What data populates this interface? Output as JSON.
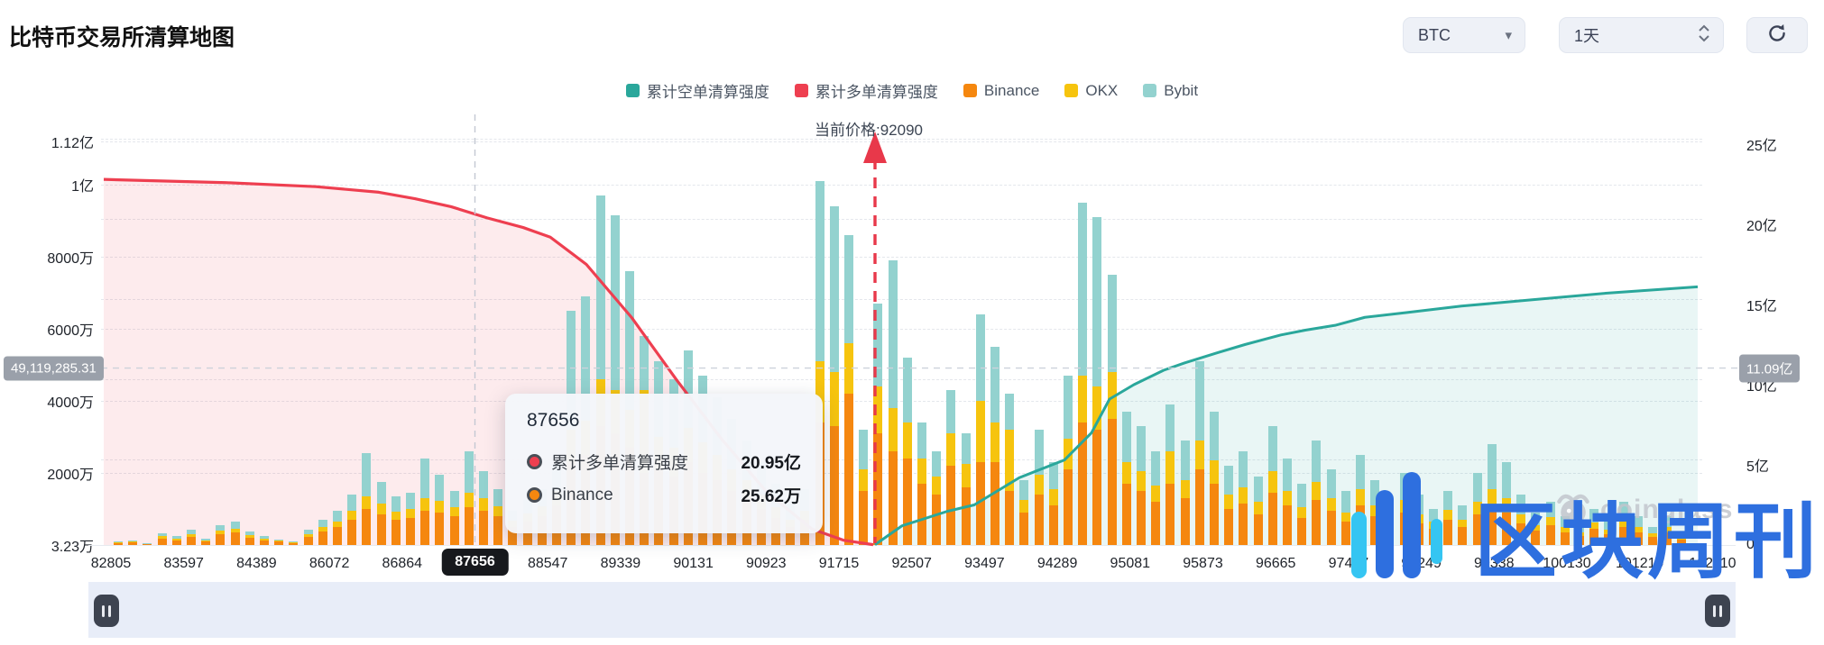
{
  "page": {
    "title": "比特币交易所清算地图"
  },
  "controls": {
    "symbol": "BTC",
    "interval": "1天",
    "refresh_icon": "refresh-icon",
    "button_bg": "#eef1f7"
  },
  "legend": [
    {
      "label": "累计空单清算强度",
      "color": "#2aa79b"
    },
    {
      "label": "累计多单清算强度",
      "color": "#ee3f50"
    },
    {
      "label": "Binance",
      "color": "#f5870f"
    },
    {
      "label": "OKX",
      "color": "#f6c40e"
    },
    {
      "label": "Bybit",
      "color": "#93d2cf"
    }
  ],
  "current_price": {
    "label": "当前价格:92090",
    "price": "92090"
  },
  "axis_pointer": {
    "left_badge": "49,119,285.31",
    "left_value_wan": 4911.93,
    "right_badge": "11.09亿"
  },
  "tooltip": {
    "title": "87656",
    "rows": [
      {
        "name": "累计多单清算强度",
        "value": "20.95亿",
        "color": "#ee3f50"
      },
      {
        "name": "Binance",
        "value": "25.62万",
        "color": "#f5870f"
      }
    ]
  },
  "watermark": {
    "brand": "coinglass",
    "text": "区块周刊",
    "text_color": "#2e6fdf",
    "logo_cyan": "#35c5f2"
  },
  "chart_data": {
    "type": "composite",
    "subtype": "stacked-bar + 2 cumulative lines",
    "legend_position": "top-center",
    "grid": "dashed horizontal",
    "bar_unit": "万",
    "line_unit": "亿",
    "left_axis": {
      "range_wan": [
        0,
        11200
      ],
      "ticks": [
        {
          "v": 11200,
          "label": "1.12亿"
        },
        {
          "v": 10000,
          "label": "1亿"
        },
        {
          "v": 8000,
          "label": "8000万"
        },
        {
          "v": 6000,
          "label": "6000万"
        },
        {
          "v": 4000,
          "label": "4000万"
        },
        {
          "v": 2000,
          "label": "2000万"
        },
        {
          "v": 3.23,
          "label": "3.23万"
        }
      ]
    },
    "right_axis": {
      "range_yi": [
        0,
        25
      ],
      "ticks": [
        {
          "v": 25,
          "label": "25亿"
        },
        {
          "v": 20,
          "label": "20亿"
        },
        {
          "v": 15,
          "label": "15亿"
        },
        {
          "v": 10,
          "label": "10亿"
        },
        {
          "v": 5,
          "label": "5亿"
        },
        {
          "v": 0,
          "label": "0"
        }
      ]
    },
    "x_ticks": [
      "82805",
      "83597",
      "84389",
      "86072",
      "86864",
      "87656",
      "88547",
      "89339",
      "90131",
      "90923",
      "91715",
      "92507",
      "93497",
      "94289",
      "95081",
      "95873",
      "96665",
      "97457",
      "98249",
      "99338",
      "100130",
      "101219",
      "102110"
    ],
    "x_highlight_index": 5,
    "bar_series_names": [
      "Binance",
      "OKX",
      "Bybit"
    ],
    "bar_colors": [
      "#f5870f",
      "#f6c40e",
      "#93d2cf"
    ],
    "bars_wan": [
      [
        50,
        20,
        20
      ],
      [
        70,
        25,
        35
      ],
      [
        35,
        10,
        15
      ],
      [
        180,
        60,
        80
      ],
      [
        130,
        40,
        70
      ],
      [
        230,
        70,
        120
      ],
      [
        100,
        30,
        50
      ],
      [
        300,
        90,
        170
      ],
      [
        340,
        110,
        190
      ],
      [
        210,
        60,
        110
      ],
      [
        130,
        40,
        70
      ],
      [
        90,
        25,
        45
      ],
      [
        60,
        20,
        30
      ],
      [
        230,
        70,
        120
      ],
      [
        380,
        120,
        200
      ],
      [
        500,
        160,
        290
      ],
      [
        700,
        250,
        450
      ],
      [
        1000,
        350,
        1200
      ],
      [
        850,
        300,
        600
      ],
      [
        700,
        220,
        430
      ],
      [
        750,
        250,
        450
      ],
      [
        950,
        350,
        1100
      ],
      [
        900,
        320,
        730
      ],
      [
        800,
        250,
        450
      ],
      [
        1050,
        400,
        1150
      ],
      [
        950,
        350,
        750
      ],
      [
        800,
        280,
        470
      ],
      [
        500,
        170,
        280
      ],
      [
        650,
        220,
        380
      ],
      [
        800,
        280,
        470
      ],
      [
        1100,
        400,
        750
      ],
      [
        2300,
        900,
        3300
      ],
      [
        2500,
        950,
        3450
      ],
      [
        3300,
        1300,
        5100
      ],
      [
        3100,
        1200,
        4850
      ],
      [
        2700,
        1050,
        3850
      ],
      [
        2000,
        2300,
        1500
      ],
      [
        2100,
        900,
        2100
      ],
      [
        1900,
        800,
        1900
      ],
      [
        2300,
        950,
        2150
      ],
      [
        2000,
        850,
        1850
      ],
      [
        1800,
        700,
        1600
      ],
      [
        1500,
        600,
        1400
      ],
      [
        1300,
        500,
        1100
      ],
      [
        1000,
        400,
        900
      ],
      [
        750,
        300,
        650
      ],
      [
        500,
        200,
        450
      ],
      [
        700,
        250,
        600
      ],
      [
        3400,
        1700,
        5000
      ],
      [
        3300,
        1500,
        4600
      ],
      [
        4200,
        1400,
        3000
      ],
      [
        1500,
        600,
        1100
      ],
      [
        3100,
        1300,
        2300
      ],
      [
        2600,
        1200,
        4100
      ],
      [
        2400,
        1000,
        1800
      ],
      [
        1700,
        700,
        1000
      ],
      [
        1400,
        500,
        700
      ],
      [
        2200,
        900,
        1200
      ],
      [
        1600,
        650,
        850
      ],
      [
        2300,
        1700,
        2400
      ],
      [
        2300,
        1100,
        2100
      ],
      [
        1500,
        1700,
        1000
      ],
      [
        900,
        350,
        550
      ],
      [
        1400,
        550,
        1250
      ],
      [
        1100,
        450,
        750
      ],
      [
        2100,
        850,
        1750
      ],
      [
        3400,
        1300,
        4800
      ],
      [
        3200,
        1200,
        4700
      ],
      [
        3500,
        1300,
        2700
      ],
      [
        1700,
        600,
        1400
      ],
      [
        1500,
        550,
        1250
      ],
      [
        1200,
        450,
        950
      ],
      [
        1700,
        900,
        1300
      ],
      [
        1300,
        500,
        1100
      ],
      [
        2100,
        800,
        2200
      ],
      [
        1700,
        650,
        1350
      ],
      [
        1000,
        400,
        800
      ],
      [
        1150,
        450,
        1000
      ],
      [
        850,
        350,
        700
      ],
      [
        1450,
        600,
        1250
      ],
      [
        1100,
        400,
        900
      ],
      [
        750,
        300,
        650
      ],
      [
        1250,
        500,
        1150
      ],
      [
        950,
        350,
        800
      ],
      [
        650,
        250,
        600
      ],
      [
        1100,
        450,
        950
      ],
      [
        800,
        300,
        700
      ],
      [
        550,
        200,
        450
      ],
      [
        900,
        350,
        750
      ],
      [
        600,
        250,
        550
      ],
      [
        450,
        200,
        350
      ],
      [
        700,
        280,
        520
      ],
      [
        500,
        200,
        400
      ],
      [
        850,
        350,
        800
      ],
      [
        1100,
        450,
        1250
      ],
      [
        900,
        400,
        1000
      ],
      [
        600,
        250,
        550
      ],
      [
        400,
        150,
        350
      ],
      [
        550,
        220,
        430
      ],
      [
        350,
        150,
        300
      ],
      [
        250,
        100,
        250
      ],
      [
        450,
        180,
        370
      ],
      [
        300,
        120,
        280
      ],
      [
        500,
        200,
        500
      ],
      [
        350,
        150,
        300
      ],
      [
        220,
        100,
        180
      ],
      [
        350,
        140,
        310
      ],
      [
        150,
        80,
        120
      ]
    ],
    "red_line": {
      "name": "累计多单清算强度",
      "color": "#ee3f50",
      "fill": "rgba(238,63,80,0.10)",
      "points_x_yi": [
        [
          115,
          22.8
        ],
        [
          250,
          22.6
        ],
        [
          350,
          22.35
        ],
        [
          420,
          22.0
        ],
        [
          460,
          21.6
        ],
        [
          500,
          21.1
        ],
        [
          540,
          20.4
        ],
        [
          580,
          19.8
        ],
        [
          610,
          19.2
        ],
        [
          650,
          17.5
        ],
        [
          700,
          14.2
        ],
        [
          750,
          10.3
        ],
        [
          800,
          6.6
        ],
        [
          850,
          3.3
        ],
        [
          900,
          1.0
        ],
        [
          935,
          0.3
        ],
        [
          968,
          0.02
        ]
      ]
    },
    "teal_line": {
      "name": "累计空单清算强度",
      "color": "#2aa79b",
      "fill": "rgba(42,167,155,0.10)",
      "points_x_yi": [
        [
          970,
          0.02
        ],
        [
          1000,
          1.2
        ],
        [
          1050,
          2.1
        ],
        [
          1080,
          2.5
        ],
        [
          1130,
          4.2
        ],
        [
          1180,
          5.3
        ],
        [
          1210,
          7.0
        ],
        [
          1230,
          9.1
        ],
        [
          1257,
          10.0
        ],
        [
          1290,
          10.9
        ],
        [
          1313,
          11.35
        ],
        [
          1350,
          12.0
        ],
        [
          1380,
          12.5
        ],
        [
          1420,
          13.1
        ],
        [
          1447,
          13.4
        ],
        [
          1480,
          13.7
        ],
        [
          1513,
          14.2
        ],
        [
          1560,
          14.5
        ],
        [
          1620,
          14.9
        ],
        [
          1700,
          15.3
        ],
        [
          1780,
          15.7
        ],
        [
          1830,
          15.9
        ],
        [
          1882,
          16.1
        ]
      ]
    }
  }
}
